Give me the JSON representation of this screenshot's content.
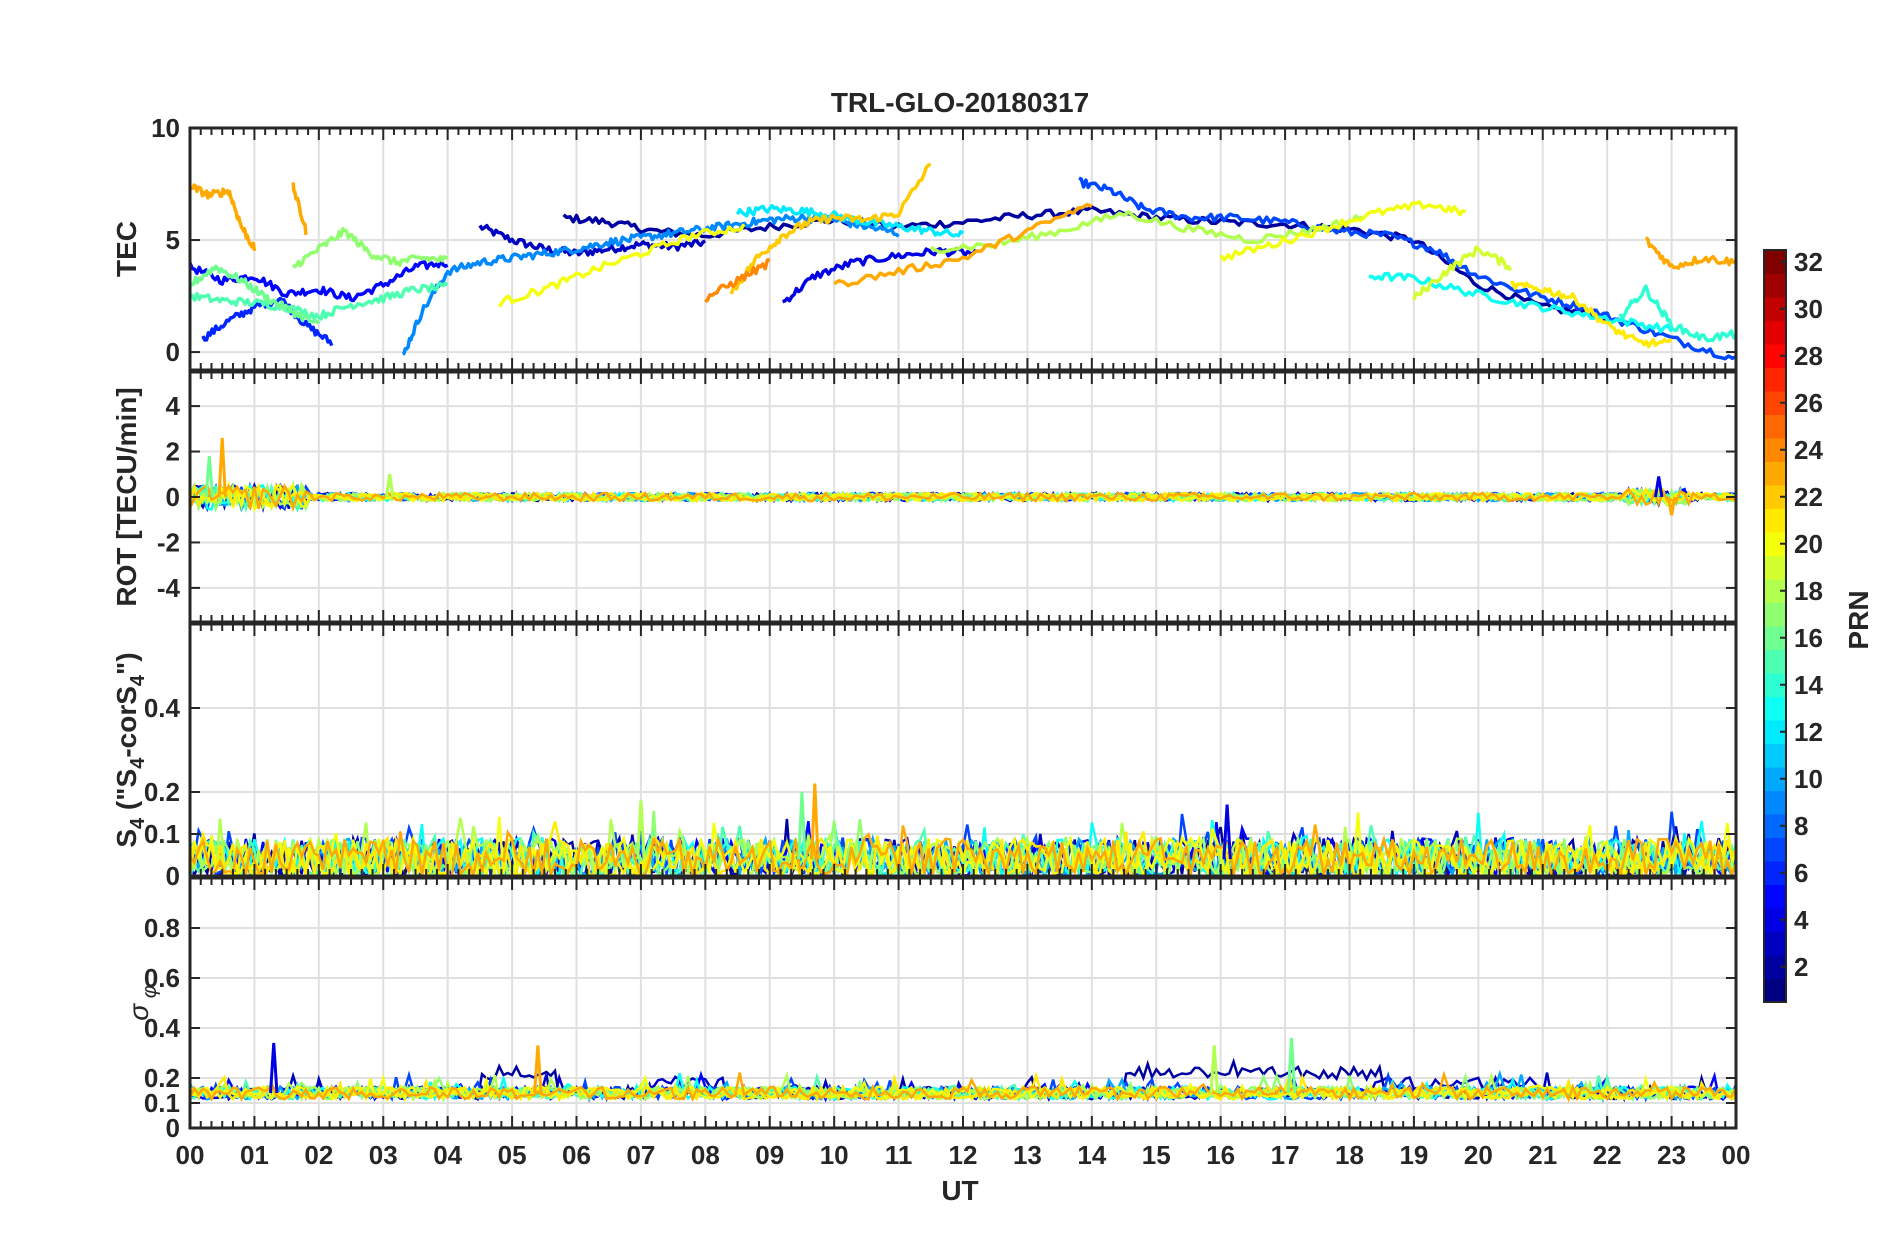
{
  "title": "TRL-GLO-20180317",
  "x_axis": {
    "label": "UT",
    "ticks": [
      "00",
      "01",
      "02",
      "03",
      "04",
      "05",
      "06",
      "07",
      "08",
      "09",
      "10",
      "11",
      "12",
      "13",
      "14",
      "15",
      "16",
      "17",
      "18",
      "19",
      "20",
      "21",
      "22",
      "23",
      "00"
    ]
  },
  "colorbar": {
    "label": "PRN",
    "range": [
      1,
      32
    ],
    "ticks": [
      "2",
      "4",
      "6",
      "8",
      "10",
      "12",
      "14",
      "16",
      "18",
      "20",
      "22",
      "24",
      "26",
      "28",
      "30",
      "32"
    ]
  },
  "chart_data": [
    {
      "type": "line",
      "panel": "TEC",
      "ylabel": "TEC",
      "ylim": [
        -0.8,
        10
      ],
      "yticks": [
        0,
        5,
        10
      ],
      "x_range_hours": [
        0,
        24
      ],
      "series": [
        {
          "prn": 3,
          "x": [
            4.5,
            5.0,
            5.5,
            6.0,
            6.5,
            7.0,
            7.5,
            8.0
          ],
          "y": [
            5.6,
            5.0,
            4.6,
            4.4,
            4.6,
            4.8,
            4.7,
            4.9
          ]
        },
        {
          "prn": 2,
          "x": [
            5.8,
            6.5,
            7.2,
            8.0,
            9.0,
            10.0,
            11.0,
            12.0,
            13.0,
            14.0,
            15.0,
            16.0,
            17.0,
            18.0,
            19.0,
            20.0,
            21.0,
            22.0
          ],
          "y": [
            6.0,
            5.8,
            5.4,
            5.2,
            5.6,
            5.9,
            5.6,
            5.8,
            6.1,
            6.3,
            6.0,
            5.8,
            5.7,
            5.5,
            5.0,
            3.0,
            2.0,
            1.6
          ]
        },
        {
          "prn": 5,
          "x": [
            0.0,
            0.5,
            1.0,
            1.5,
            2.0,
            2.5,
            3.0,
            3.5,
            4.0
          ],
          "y": [
            3.8,
            3.2,
            3.4,
            2.6,
            2.8,
            2.4,
            3.0,
            3.8,
            4.0
          ]
        },
        {
          "prn": 6,
          "x": [
            0.2,
            0.6,
            1.0,
            1.4,
            1.8,
            2.2
          ],
          "y": [
            0.6,
            1.4,
            2.0,
            2.4,
            1.2,
            0.4
          ]
        },
        {
          "prn": 4,
          "x": [
            9.2,
            9.7,
            10.3,
            11.0,
            11.6,
            12.2
          ],
          "y": [
            2.2,
            3.4,
            4.0,
            4.3,
            4.5,
            4.4
          ]
        },
        {
          "prn": 7,
          "x": [
            13.8,
            14.3,
            14.8,
            15.5,
            16.2,
            17.0,
            17.8,
            18.6,
            19.3,
            20.0,
            20.8,
            21.6,
            22.4,
            23.2,
            24.0
          ],
          "y": [
            7.6,
            7.2,
            6.4,
            6.0,
            6.0,
            5.8,
            5.4,
            5.2,
            4.6,
            3.4,
            2.6,
            2.0,
            1.2,
            0.4,
            -0.3
          ]
        },
        {
          "prn": 9,
          "x": [
            3.3,
            3.6,
            4.0,
            4.5,
            5.0,
            5.5,
            6.0,
            6.5,
            7.0,
            7.5,
            8.0,
            8.5,
            9.0,
            9.5,
            10.0,
            10.5,
            11.0
          ],
          "y": [
            -0.2,
            1.8,
            3.6,
            4.0,
            4.2,
            4.4,
            4.6,
            4.9,
            5.1,
            5.3,
            5.5,
            5.7,
            5.9,
            6.0,
            5.9,
            5.6,
            5.3
          ]
        },
        {
          "prn": 12,
          "x": [
            8.5,
            9.0,
            9.5,
            10.0,
            10.5,
            11.0,
            11.5,
            12.0
          ],
          "y": [
            6.2,
            6.4,
            6.3,
            6.1,
            5.8,
            5.6,
            5.4,
            5.2
          ]
        },
        {
          "prn": 13,
          "x": [
            18.3,
            19.0,
            19.8,
            20.6,
            21.4,
            22.2,
            23.0
          ],
          "y": [
            3.4,
            3.3,
            2.7,
            2.2,
            1.8,
            1.4,
            1.0
          ]
        },
        {
          "prn": 15,
          "x": [
            0.0,
            0.5,
            1.0,
            1.5,
            2.0,
            2.5,
            3.0,
            3.5,
            4.0
          ],
          "y": [
            2.5,
            2.3,
            2.2,
            2.0,
            1.6,
            2.1,
            2.4,
            2.8,
            2.9
          ]
        },
        {
          "prn": 16,
          "x": [
            0.0,
            0.4,
            0.8,
            1.2,
            1.6,
            2.0
          ],
          "y": [
            3.0,
            3.8,
            3.2,
            2.4,
            1.8,
            1.2
          ]
        },
        {
          "prn": 17,
          "x": [
            1.6,
            2.0,
            2.4,
            2.8,
            3.2,
            3.6,
            4.0
          ],
          "y": [
            3.8,
            4.6,
            5.4,
            4.4,
            4.0,
            4.2,
            4.1
          ]
        },
        {
          "prn": 18,
          "x": [
            11.5,
            12.5,
            13.5,
            14.5,
            15.5,
            16.5,
            17.5,
            18.2
          ],
          "y": [
            4.6,
            4.8,
            5.4,
            6.2,
            5.5,
            5.0,
            5.5,
            6.0
          ]
        },
        {
          "prn": 20,
          "x": [
            4.8,
            5.5,
            6.2,
            7.0,
            7.8,
            8.6
          ],
          "y": [
            2.2,
            2.8,
            3.6,
            4.4,
            5.2,
            5.6
          ]
        },
        {
          "prn": 20,
          "x": [
            16.0,
            16.8,
            17.6,
            18.4,
            19.2,
            19.8
          ],
          "y": [
            4.2,
            4.8,
            5.5,
            6.2,
            6.6,
            6.2
          ]
        },
        {
          "prn": 19,
          "x": [
            19.0,
            19.5,
            20.0,
            20.5
          ],
          "y": [
            2.4,
            3.6,
            4.6,
            3.8
          ]
        },
        {
          "prn": 22,
          "x": [
            8.4,
            8.8,
            9.2,
            9.6,
            10.0,
            10.5,
            11.0,
            11.5
          ],
          "y": [
            2.6,
            4.2,
            5.2,
            5.8,
            6.0,
            5.9,
            6.2,
            8.4
          ]
        },
        {
          "prn": 23,
          "x": [
            0.0,
            0.3,
            0.6,
            0.8,
            1.0
          ],
          "y": [
            7.4,
            7.0,
            7.2,
            5.6,
            4.6
          ]
        },
        {
          "prn": 23,
          "x": [
            1.6,
            1.8
          ],
          "y": [
            7.4,
            5.4
          ]
        },
        {
          "prn": 23,
          "x": [
            10.0,
            11.0,
            12.0,
            13.0,
            14.0
          ],
          "y": [
            3.0,
            3.6,
            4.2,
            5.4,
            6.6
          ]
        },
        {
          "prn": 23,
          "x": [
            22.6,
            23.0,
            23.5,
            24.0
          ],
          "y": [
            5.0,
            3.8,
            4.2,
            4.0
          ]
        },
        {
          "prn": 24,
          "x": [
            8.0,
            8.5,
            9.0
          ],
          "y": [
            2.4,
            3.2,
            4.0
          ]
        },
        {
          "prn": 21,
          "x": [
            20.5,
            21.0,
            21.5,
            22.0,
            22.5,
            23.0
          ],
          "y": [
            3.0,
            2.8,
            2.4,
            1.2,
            0.4,
            0.4
          ]
        },
        {
          "prn": 14,
          "x": [
            22.2,
            22.6,
            23.0,
            23.5,
            24.0
          ],
          "y": [
            1.6,
            2.8,
            1.2,
            0.6,
            0.8
          ]
        }
      ]
    },
    {
      "type": "line",
      "panel": "ROT",
      "ylabel": "ROT [TECU/min]",
      "ylim": [
        -5.5,
        5.5
      ],
      "yticks": [
        -4,
        -2,
        0,
        2,
        4
      ],
      "description_series": "noise-like series near zero for all PRNs",
      "peaks": [
        {
          "x": 0.5,
          "y": 2.6
        },
        {
          "x": 0.3,
          "y": 1.8
        },
        {
          "x": 3.1,
          "y": 1.0
        },
        {
          "x": 22.8,
          "y": 0.9
        },
        {
          "x": 23.0,
          "y": -0.8
        }
      ]
    },
    {
      "type": "line",
      "panel": "S4",
      "ylabel": "S4 (\"S4-corS4\")",
      "ylim": [
        0,
        0.6
      ],
      "yticks": [
        0,
        0.1,
        0.2,
        0.4
      ],
      "peaks": [
        {
          "x": 9.7,
          "y": 0.22
        },
        {
          "x": 9.5,
          "y": 0.2
        },
        {
          "x": 7.0,
          "y": 0.18
        },
        {
          "x": 16.1,
          "y": 0.17
        }
      ]
    },
    {
      "type": "line",
      "panel": "sigma_phi",
      "ylabel": "σ φ",
      "ylim": [
        0,
        1
      ],
      "yticks": [
        0,
        0.1,
        0.2,
        0.4,
        0.6,
        0.8
      ],
      "peaks": [
        {
          "x": 5.4,
          "y": 0.33
        },
        {
          "x": 17.1,
          "y": 0.36
        },
        {
          "x": 15.9,
          "y": 0.33
        },
        {
          "x": 1.3,
          "y": 0.34
        }
      ]
    }
  ]
}
